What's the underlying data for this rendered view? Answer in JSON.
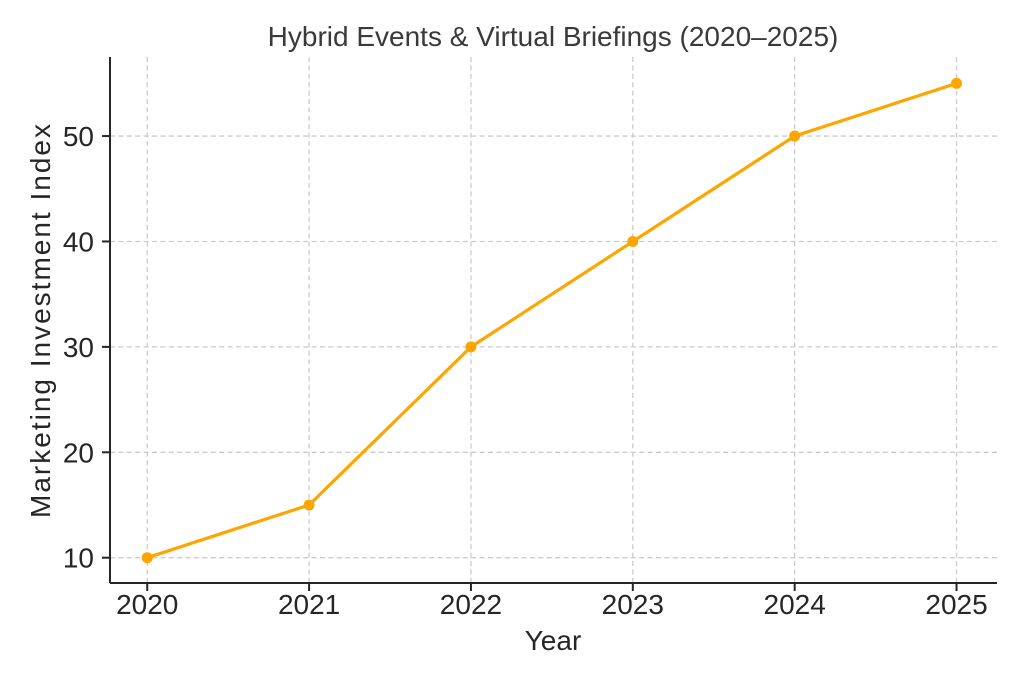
{
  "chart_data": {
    "type": "line",
    "title": "Hybrid Events & Virtual Briefings (2020–2025)",
    "xlabel": "Year",
    "ylabel": "Marketing Investment Index",
    "x": [
      2020,
      2021,
      2022,
      2023,
      2024,
      2025
    ],
    "series": [
      {
        "name": "Marketing Investment Index",
        "values": [
          10,
          15,
          30,
          40,
          50,
          55
        ],
        "color": "#FFA500",
        "marker": "circle",
        "line_width": 3.2,
        "marker_radius": 5.5
      }
    ],
    "xticks": [
      2020,
      2021,
      2022,
      2023,
      2024,
      2025
    ],
    "yticks": [
      10,
      20,
      30,
      40,
      50
    ],
    "xlim": [
      2019.77,
      2025.25
    ],
    "ylim": [
      7.6,
      57.5
    ],
    "grid": true,
    "grid_style": "dashed",
    "legend": "none",
    "spines": [
      "left",
      "bottom"
    ],
    "colors": {
      "line": "#FFA500",
      "grid": "#cccccc",
      "text": "#262626",
      "title": "#3a3a3a",
      "spine": "#262626",
      "background": "#ffffff"
    }
  }
}
